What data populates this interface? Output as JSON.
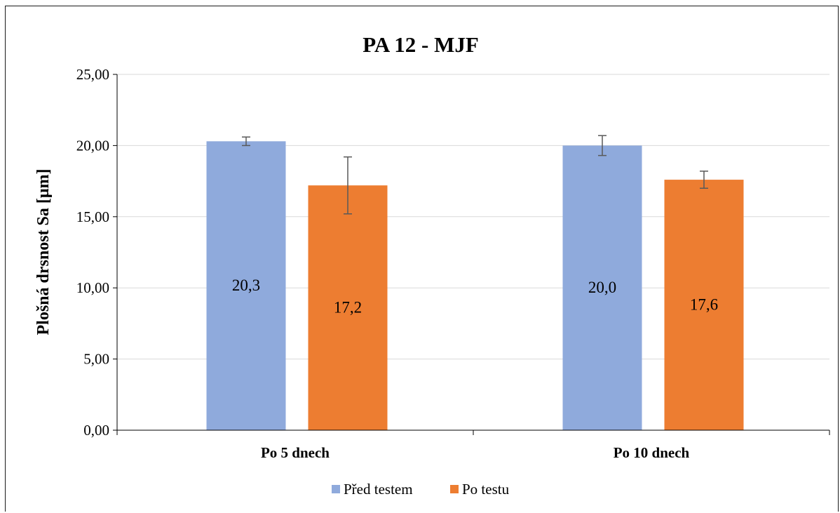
{
  "chart_data": {
    "type": "bar",
    "title": "PA 12 - MJF",
    "xlabel": "",
    "ylabel": "Plošná drsnost Sa [μm]",
    "categories": [
      "Po 5 dnech",
      "Po 10 dnech"
    ],
    "ylim": [
      0,
      25
    ],
    "yticks": [
      0,
      5,
      10,
      15,
      20,
      25
    ],
    "ytick_labels": [
      "0,00",
      "5,00",
      "10,00",
      "15,00",
      "20,00",
      "25,00"
    ],
    "grid": true,
    "legend_position": "bottom",
    "series": [
      {
        "name": "Před testem",
        "color": "#8faadc",
        "values": [
          20.3,
          20.0
        ],
        "errors": [
          0.3,
          0.7
        ],
        "labels": [
          "20,3",
          "20,0"
        ]
      },
      {
        "name": "Po testu",
        "color": "#ed7d31",
        "values": [
          17.2,
          17.6
        ],
        "errors": [
          2.0,
          0.6
        ],
        "labels": [
          "17,2",
          "17,6"
        ]
      }
    ]
  }
}
